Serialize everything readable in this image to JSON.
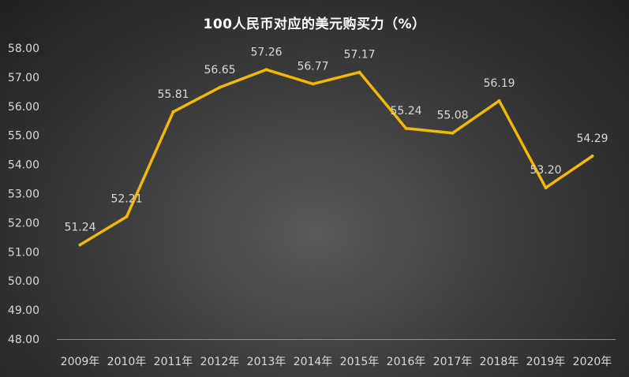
{
  "chart_data": {
    "type": "line",
    "title": "100人民币对应的美元购买力（%）",
    "xlabel": "",
    "ylabel": "",
    "categories": [
      "2009年",
      "2010年",
      "2011年",
      "2012年",
      "2013年",
      "2014年",
      "2015年",
      "2016年",
      "2017年",
      "2018年",
      "2019年",
      "2020年"
    ],
    "values": [
      51.24,
      52.21,
      55.81,
      56.65,
      57.26,
      56.77,
      57.17,
      55.24,
      55.08,
      56.19,
      53.2,
      54.29
    ],
    "data_labels": [
      "51.24",
      "52.21",
      "55.81",
      "56.65",
      "57.26",
      "56.77",
      "57.17",
      "55.24",
      "55.08",
      "56.19",
      "53.20",
      "54.29"
    ],
    "ylim": [
      48,
      58
    ],
    "yticks": [
      "48.00",
      "49.00",
      "50.00",
      "51.00",
      "52.00",
      "53.00",
      "54.00",
      "55.00",
      "56.00",
      "57.00",
      "58.00"
    ],
    "grid": false,
    "legend": "none",
    "line_color": "#F5B800",
    "background": "#3c3c3c"
  }
}
